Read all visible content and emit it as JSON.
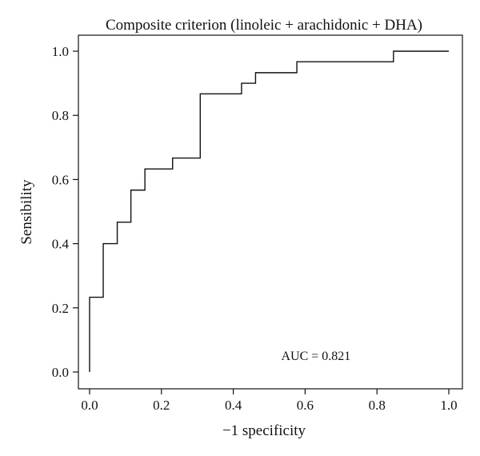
{
  "chart_data": {
    "type": "line",
    "title": "Composite criterion (linoleic + arachidonic + DHA)",
    "xlabel": "−1 specificity",
    "ylabel": "Sensibility",
    "xlim": [
      0,
      1
    ],
    "ylim": [
      0,
      1
    ],
    "x_ticks": [
      "0.0",
      "0.2",
      "0.4",
      "0.6",
      "0.8",
      "1.0"
    ],
    "y_ticks": [
      "0.0",
      "0.2",
      "0.4",
      "0.6",
      "0.8",
      "1.0"
    ],
    "grid": false,
    "legend": "none",
    "series": [
      {
        "step": true,
        "x": [
          0,
          0,
          0.038,
          0.038,
          0.077,
          0.077,
          0.115,
          0.115,
          0.154,
          0.154,
          0.231,
          0.231,
          0.308,
          0.308,
          0.423,
          0.423,
          0.462,
          0.462,
          0.577,
          0.577,
          0.846,
          0.846,
          1.0
        ],
        "y": [
          0,
          0.233,
          0.233,
          0.4,
          0.4,
          0.467,
          0.467,
          0.567,
          0.567,
          0.633,
          0.633,
          0.667,
          0.667,
          0.867,
          0.867,
          0.9,
          0.9,
          0.933,
          0.933,
          0.967,
          0.967,
          1.0,
          1.0
        ]
      }
    ],
    "annotations": [
      {
        "text": "AUC = 0.821",
        "x": 0.63,
        "y": 0.05
      }
    ]
  }
}
